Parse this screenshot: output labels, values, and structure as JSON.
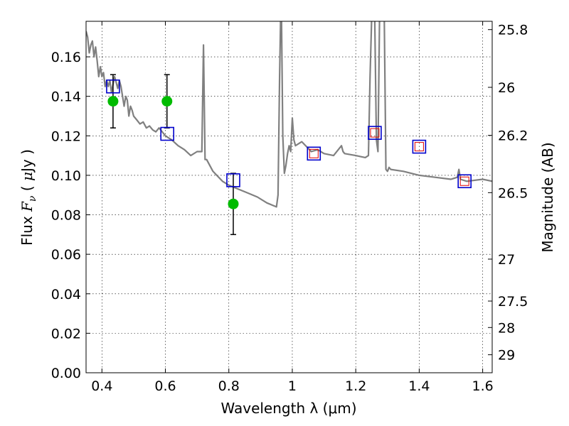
{
  "chart_data": {
    "type": "line",
    "xlabel": "Wavelength  λ (μm)",
    "ylabel": "Flux  F_ν  ( μJy )",
    "ylabel_parts": {
      "pre": "Flux ",
      "F": "F",
      "nu": "ν",
      "mid": "  ( ",
      "mu": "μ",
      "post": "Jy )"
    },
    "y2label": "Magnitude (AB)",
    "xlim": [
      0.35,
      1.63
    ],
    "ylim": [
      0.0,
      0.178
    ],
    "x_ticks": [
      {
        "v": 0.4,
        "label": "0.4"
      },
      {
        "v": 0.6,
        "label": "0.6"
      },
      {
        "v": 0.8,
        "label": "0.8"
      },
      {
        "v": 1.0,
        "label": "1"
      },
      {
        "v": 1.2,
        "label": "1.2"
      },
      {
        "v": 1.4,
        "label": "1.4"
      },
      {
        "v": 1.6,
        "label": "1.6"
      }
    ],
    "y_ticks": [
      {
        "v": 0.0,
        "label": "0.00"
      },
      {
        "v": 0.02,
        "label": "0.02"
      },
      {
        "v": 0.04,
        "label": "0.04"
      },
      {
        "v": 0.06,
        "label": "0.06"
      },
      {
        "v": 0.08,
        "label": "0.08"
      },
      {
        "v": 0.1,
        "label": "0.10"
      },
      {
        "v": 0.12,
        "label": "0.12"
      },
      {
        "v": 0.14,
        "label": "0.14"
      },
      {
        "v": 0.16,
        "label": "0.16"
      }
    ],
    "y2_ticks": [
      {
        "mag": 25.8,
        "label": "25.8"
      },
      {
        "mag": 26,
        "label": "26"
      },
      {
        "mag": 26.2,
        "label": "26.2"
      },
      {
        "mag": 26.5,
        "label": "26.5"
      },
      {
        "mag": 27,
        "label": "27"
      },
      {
        "mag": 27.5,
        "label": "27.5"
      },
      {
        "mag": 28,
        "label": "28"
      },
      {
        "mag": 29,
        "label": "29"
      }
    ],
    "grid": true,
    "colors": {
      "model": "#808080",
      "observed": "#00bb00",
      "model_photometry": "#0000cc",
      "synthetic_photometry": "#dd0000",
      "errorbar": "#000000"
    },
    "model_spectrum": {
      "x": [
        0.35,
        0.355,
        0.36,
        0.365,
        0.37,
        0.375,
        0.38,
        0.385,
        0.39,
        0.395,
        0.4,
        0.405,
        0.41,
        0.415,
        0.42,
        0.425,
        0.43,
        0.435,
        0.44,
        0.445,
        0.45,
        0.455,
        0.46,
        0.465,
        0.47,
        0.475,
        0.48,
        0.485,
        0.49,
        0.495,
        0.5,
        0.51,
        0.52,
        0.53,
        0.54,
        0.55,
        0.56,
        0.57,
        0.58,
        0.59,
        0.6,
        0.62,
        0.64,
        0.66,
        0.68,
        0.7,
        0.715,
        0.72,
        0.725,
        0.73,
        0.75,
        0.78,
        0.8,
        0.83,
        0.86,
        0.89,
        0.92,
        0.95,
        0.955,
        0.96,
        0.963,
        0.966,
        0.97,
        0.975,
        0.98,
        0.985,
        0.99,
        0.995,
        1.0,
        1.005,
        1.01,
        1.03,
        1.06,
        1.08,
        1.1,
        1.13,
        1.155,
        1.16,
        1.165,
        1.2,
        1.23,
        1.24,
        1.245,
        1.25,
        1.255,
        1.26,
        1.265,
        1.27,
        1.275,
        1.28,
        1.285,
        1.29,
        1.295,
        1.3,
        1.305,
        1.31,
        1.35,
        1.4,
        1.45,
        1.5,
        1.52,
        1.525,
        1.53,
        1.55,
        1.6,
        1.63
      ],
      "y": [
        0.173,
        0.17,
        0.162,
        0.166,
        0.168,
        0.16,
        0.165,
        0.158,
        0.15,
        0.155,
        0.15,
        0.152,
        0.145,
        0.148,
        0.145,
        0.148,
        0.142,
        0.146,
        0.15,
        0.147,
        0.144,
        0.148,
        0.145,
        0.14,
        0.135,
        0.14,
        0.138,
        0.13,
        0.135,
        0.133,
        0.13,
        0.128,
        0.126,
        0.127,
        0.124,
        0.125,
        0.123,
        0.122,
        0.124,
        0.122,
        0.12,
        0.118,
        0.115,
        0.113,
        0.11,
        0.112,
        0.112,
        0.166,
        0.108,
        0.108,
        0.102,
        0.097,
        0.095,
        0.093,
        0.091,
        0.089,
        0.086,
        0.084,
        0.09,
        0.15,
        0.179,
        0.179,
        0.12,
        0.101,
        0.105,
        0.111,
        0.115,
        0.112,
        0.129,
        0.118,
        0.115,
        0.117,
        0.112,
        0.113,
        0.111,
        0.11,
        0.115,
        0.112,
        0.111,
        0.11,
        0.109,
        0.11,
        0.15,
        0.179,
        0.179,
        0.179,
        0.118,
        0.112,
        0.179,
        0.179,
        0.179,
        0.179,
        0.103,
        0.102,
        0.104,
        0.103,
        0.102,
        0.1,
        0.099,
        0.098,
        0.099,
        0.103,
        0.098,
        0.097,
        0.098,
        0.097
      ]
    },
    "observed_photometry": [
      {
        "x": 0.435,
        "y": 0.1375,
        "yerr": 0.0135
      },
      {
        "x": 0.605,
        "y": 0.1375,
        "yerr": 0.0135
      },
      {
        "x": 0.814,
        "y": 0.0855,
        "yerr": 0.0155
      }
    ],
    "model_photometry": [
      {
        "x": 0.435,
        "y": 0.145
      },
      {
        "x": 0.606,
        "y": 0.121
      },
      {
        "x": 0.814,
        "y": 0.0975
      },
      {
        "x": 1.068,
        "y": 0.111
      },
      {
        "x": 1.26,
        "y": 0.1215
      },
      {
        "x": 1.4,
        "y": 0.1145
      },
      {
        "x": 1.543,
        "y": 0.097
      }
    ],
    "synthetic_photometry": [
      {
        "x": 1.068,
        "y": 0.111
      },
      {
        "x": 1.26,
        "y": 0.1215
      },
      {
        "x": 1.4,
        "y": 0.1145
      },
      {
        "x": 1.543,
        "y": 0.097
      }
    ]
  }
}
